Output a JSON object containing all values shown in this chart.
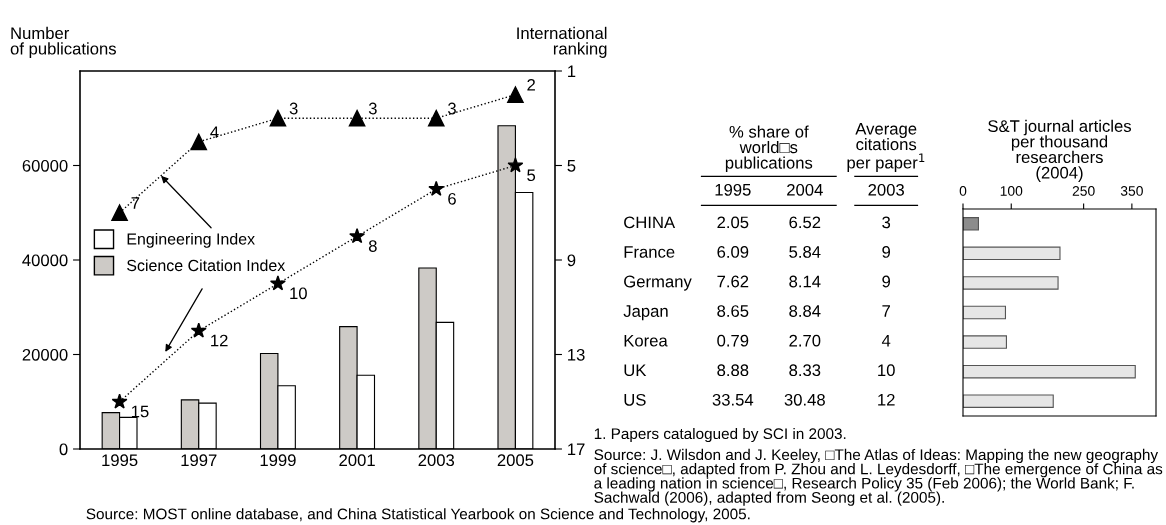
{
  "chart_data": [
    {
      "type": "bar",
      "ylabel": "Number\nof publications",
      "y2label": "International\nranking",
      "categories": [
        "1995",
        "1997",
        "1999",
        "2001",
        "2003",
        "2005"
      ],
      "series": [
        {
          "name": "Science Citation Index",
          "color": "#cdcac6",
          "values": [
            7700,
            10400,
            20200,
            25900,
            38300,
            68400
          ]
        },
        {
          "name": "Engineering Index",
          "color": "#ffffff",
          "values": [
            6700,
            9700,
            13400,
            15600,
            26800,
            54300
          ]
        },
        {
          "type": "line",
          "axis": "y2",
          "color": "#000000",
          "marker": "triangle",
          "line_style": "dotted",
          "values": [
            7,
            4,
            3,
            3,
            3,
            2
          ],
          "value_labels": [
            "7",
            "4",
            "3",
            "3",
            "3",
            "2"
          ]
        },
        {
          "type": "line",
          "axis": "y2",
          "color": "#000000",
          "marker": "star",
          "line_style": "dotted",
          "values": [
            15,
            12,
            10,
            8,
            6,
            5
          ],
          "value_labels": [
            "15",
            "12",
            "10",
            "8",
            "6",
            "5"
          ]
        }
      ],
      "ylim": [
        0,
        80000
      ],
      "yticks": [
        0,
        20000,
        40000,
        60000
      ],
      "y2lim": [
        17,
        1
      ],
      "y2ticks": [
        1,
        5,
        9,
        13,
        17
      ],
      "legend": "left",
      "grid": false,
      "annotations": [
        "Source: MOST online database, and China Statistical Yearbook on Science and Technology, 2005."
      ]
    },
    {
      "type": "other",
      "categories": [
        "CHINA",
        "France",
        "Germany",
        "Japan",
        "Korea",
        "UK",
        "US"
      ],
      "series": [
        {
          "name": "1995",
          "values": [
            2.05,
            6.09,
            7.62,
            8.65,
            0.79,
            8.88,
            33.54
          ],
          "value_labels": [
            "2.05",
            "6.09",
            "7.62",
            "8.65",
            "0.79",
            "8.88",
            "33.54"
          ]
        },
        {
          "name": "2004",
          "values": [
            6.52,
            5.84,
            8.14,
            8.84,
            2.7,
            8.33,
            30.48
          ],
          "value_labels": [
            "6.52",
            "5.84",
            "8.14",
            "8.84",
            "2.70",
            "8.33",
            "30.48"
          ]
        },
        {
          "name": "2003",
          "values": [
            3,
            9,
            9,
            7,
            4,
            10,
            12
          ],
          "value_labels": [
            "3",
            "9",
            "9",
            "7",
            "4",
            "10",
            "12"
          ]
        }
      ],
      "annotations": [
        "% share of\nworld□s\npublications",
        "Average\ncitations\nper paper$^{1}$"
      ]
    },
    {
      "type": "bar",
      "orientation": "horizontal",
      "title": "S&T journal articles\nper thousand\nresearchers\n(2004)",
      "categories": [
        null,
        null,
        null,
        null,
        null,
        null,
        null
      ],
      "values": [
        32,
        201,
        197,
        88,
        90,
        357,
        187
      ],
      "colors": [
        "#8c8c8c",
        "#e6e6e6",
        "#e6e6e6",
        "#e6e6e6",
        "#e6e6e6",
        "#e6e6e6",
        "#e6e6e6"
      ],
      "xlim": [
        0,
        400
      ],
      "xticks": [
        0,
        100,
        250,
        350
      ],
      "tick_labels": "x",
      "annotations": [
        "1. Papers catalogued by SCI in 2003.",
        "Source: J. Wilsdon and J. Keeley, □The Atlas of Ideas: Mapping the new geography of science□, adapted from P. Zhou and L. Leydesdorff, □The emergence of China as a leading nation in science□, Research Policy 35 (Feb 2006); the World Bank; F. Sachwald (2006), adapted from Seong et al. (2005)."
      ]
    }
  ]
}
